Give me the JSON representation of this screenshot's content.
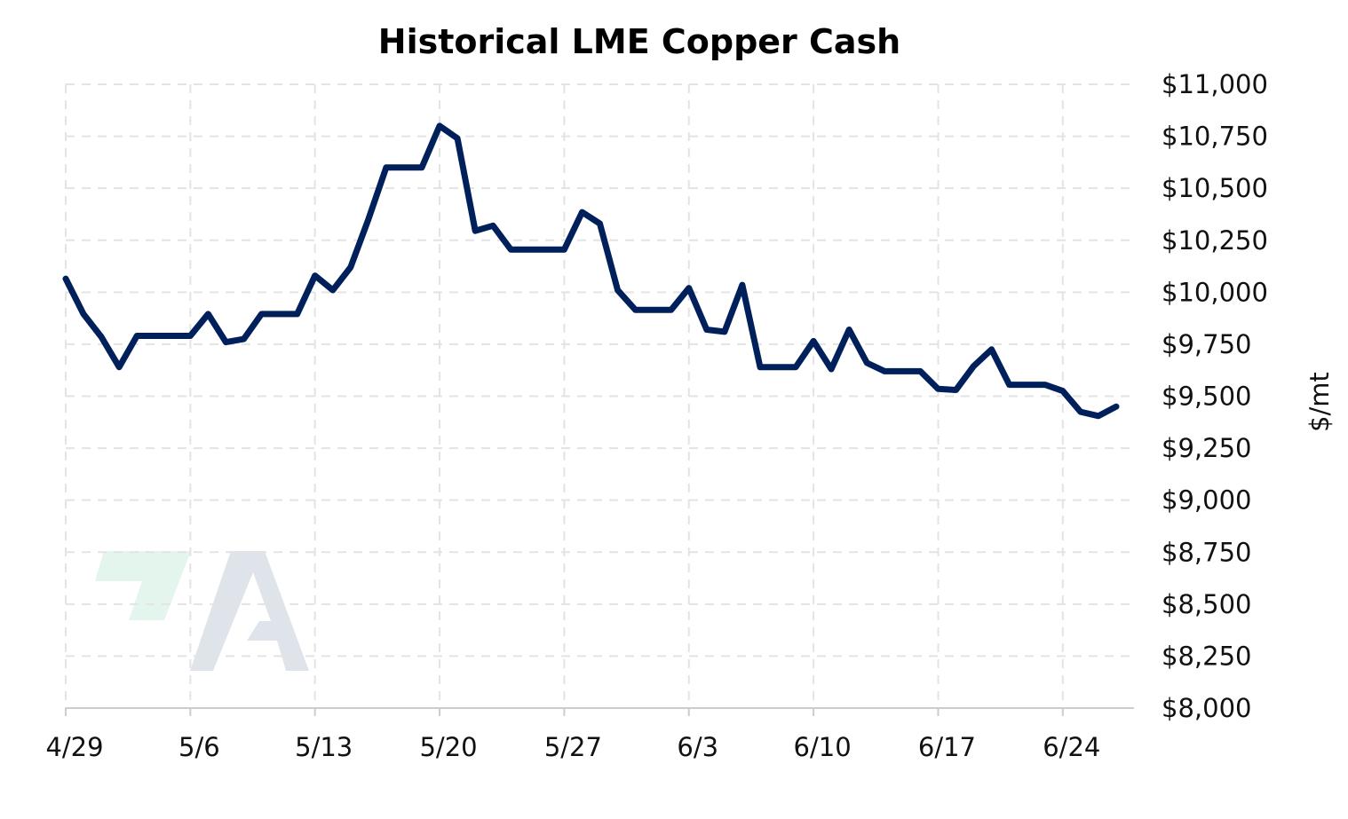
{
  "chart_data": {
    "type": "line",
    "title": "Historical LME Copper Cash",
    "xlabel": "",
    "ylabel": "$/mt",
    "ylim": [
      8000,
      11000
    ],
    "yticks": [
      8000,
      8250,
      8500,
      8750,
      9000,
      9250,
      9500,
      9750,
      10000,
      10250,
      10500,
      10750,
      11000
    ],
    "ytick_labels": [
      "$8,000",
      "$8,250",
      "$8,500",
      "$8,750",
      "$9,000",
      "$9,250",
      "$9,500",
      "$9,750",
      "$10,000",
      "$10,250",
      "$10,500",
      "$10,750",
      "$11,000"
    ],
    "xticks": [
      "4/29",
      "5/6",
      "5/13",
      "5/20",
      "5/27",
      "6/3",
      "6/10",
      "6/17",
      "6/24"
    ],
    "xlim": [
      "4/29",
      "6/28"
    ],
    "grid": true,
    "line_color": "#00205b",
    "series": [
      {
        "x": [
          "4/29",
          "4/30",
          "5/1",
          "5/2",
          "5/3",
          "5/4",
          "5/5",
          "5/6",
          "5/7",
          "5/8",
          "5/9",
          "5/10",
          "5/11",
          "5/12",
          "5/13",
          "5/14",
          "5/15",
          "5/16",
          "5/17",
          "5/18",
          "5/19",
          "5/20",
          "5/21",
          "5/22",
          "5/23",
          "5/24",
          "5/25",
          "5/26",
          "5/27",
          "5/28",
          "5/29",
          "5/30",
          "5/31",
          "6/1",
          "6/2",
          "6/3",
          "6/4",
          "6/5",
          "6/6",
          "6/7",
          "6/8",
          "6/9",
          "6/10",
          "6/11",
          "6/12",
          "6/13",
          "6/14",
          "6/15",
          "6/16",
          "6/17",
          "6/18",
          "6/19",
          "6/20",
          "6/21",
          "6/22",
          "6/23",
          "6/24",
          "6/25",
          "6/26",
          "6/27",
          "6/28"
        ],
        "values": [
          10065,
          9895,
          9785,
          9640,
          9790,
          9790,
          9790,
          9790,
          9895,
          9760,
          9775,
          9895,
          9895,
          9895,
          10080,
          10010,
          10120,
          10350,
          10600,
          10600,
          10600,
          10800,
          10740,
          10295,
          10320,
          10205,
          10205,
          10205,
          10205,
          10385,
          10330,
          10010,
          9915,
          9915,
          9915,
          10020,
          9820,
          9810,
          10035,
          9640,
          9640,
          9640,
          9765,
          9630,
          9820,
          9660,
          9620,
          9620,
          9620,
          9535,
          9530,
          9645,
          9725,
          9555,
          9555,
          9555,
          9525,
          9425,
          9405,
          9450,
          null
        ]
      }
    ]
  },
  "watermark": {
    "name": "logo-mark",
    "colors": [
      "#e3f5ec",
      "#dfe3ea"
    ]
  }
}
